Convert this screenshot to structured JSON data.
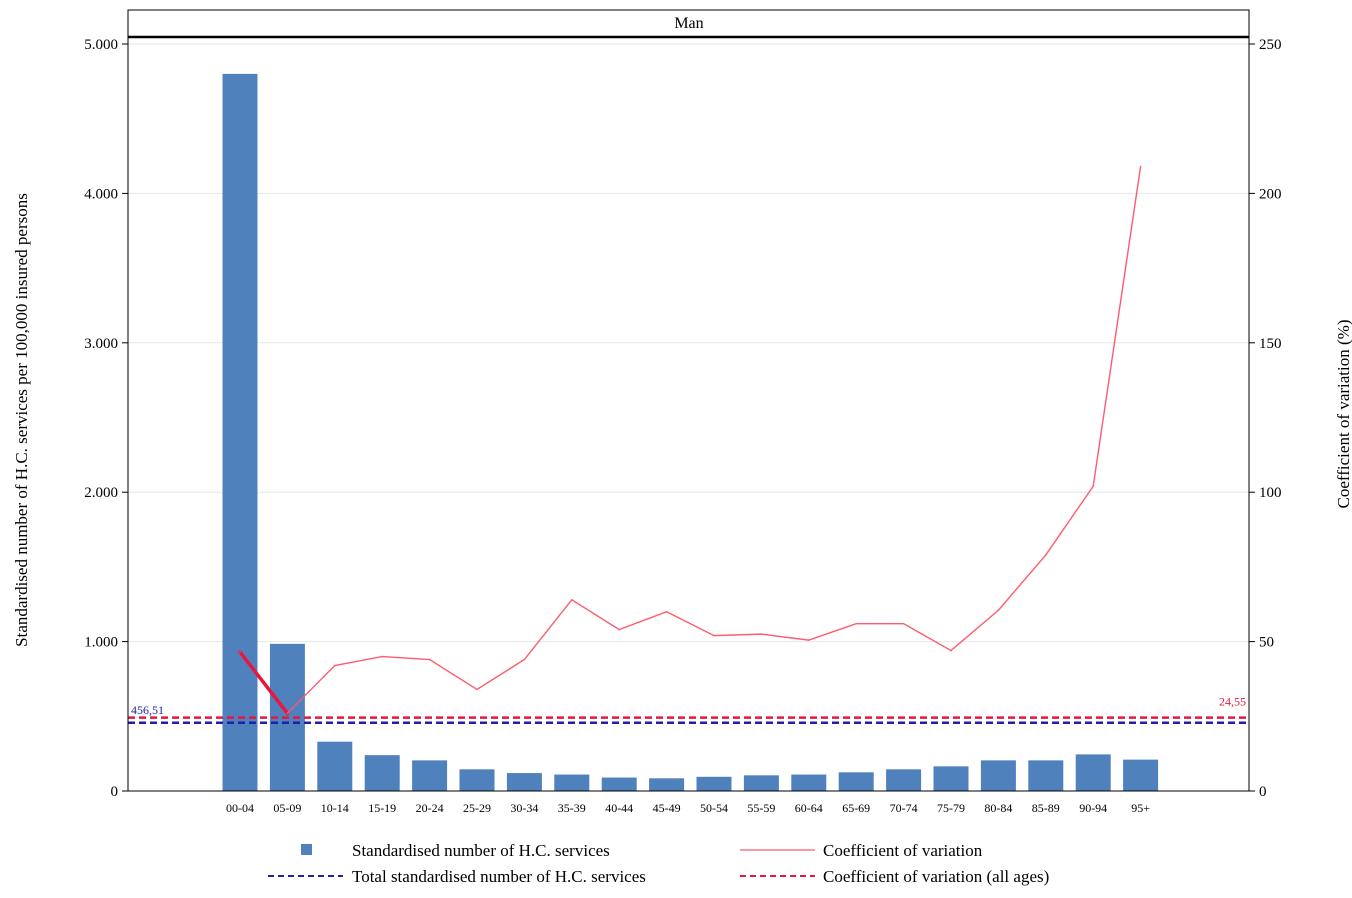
{
  "chart_data": {
    "type": "bar",
    "title": "Man",
    "categories": [
      "00-04",
      "05-09",
      "10-14",
      "15-19",
      "20-24",
      "25-29",
      "30-34",
      "35-39",
      "40-44",
      "45-49",
      "50-54",
      "55-59",
      "60-64",
      "65-69",
      "70-74",
      "75-79",
      "80-84",
      "85-89",
      "90-94",
      "95+"
    ],
    "ylabel": "Standardised number of H.C. services per 100,000 insured persons",
    "y2label": "Coefficient of variation (%)",
    "ylim": [
      0,
      5000
    ],
    "y2lim": [
      0,
      250
    ],
    "yticks": [
      0,
      1000,
      2000,
      3000,
      4000,
      5000
    ],
    "yticklabels": [
      "0",
      "1.000",
      "2.000",
      "3.000",
      "4.000",
      "5.000"
    ],
    "y2ticks": [
      0,
      50,
      100,
      150,
      200,
      250
    ],
    "y2ticklabels": [
      "0",
      "50",
      "100",
      "150",
      "200",
      "250"
    ],
    "grid": true,
    "series": [
      {
        "name": "Standardised number of H.C. services",
        "kind": "bar",
        "axis": "left",
        "color": "#4f81bd",
        "values": [
          4800,
          985,
          330,
          240,
          205,
          145,
          120,
          110,
          90,
          85,
          95,
          105,
          110,
          125,
          145,
          165,
          205,
          205,
          245,
          210
        ]
      },
      {
        "name": "Coefficient of variation",
        "kind": "line",
        "axis": "right",
        "color": "#ff5a6e",
        "values": [
          46.5,
          26,
          42,
          45,
          44,
          34,
          44,
          64,
          54,
          60,
          52,
          52.5,
          50.5,
          56,
          56,
          47,
          60.5,
          79,
          102,
          209
        ]
      }
    ],
    "reference_lines": [
      {
        "name": "Total standardised number of H.C. services",
        "axis": "left",
        "value": 456.51,
        "label": "456,51",
        "color": "#1f1fa8",
        "style": "dashed"
      },
      {
        "name": "Coefficient of variation (all ages)",
        "axis": "right",
        "value": 24.55,
        "label": "24,55",
        "color": "#e8173c",
        "style": "dashed"
      }
    ],
    "legend": {
      "placement": "bottom",
      "items": [
        "Standardised number of H.C. services",
        "Coefficient of variation",
        "Total standardised number of H.C. services",
        "Coefficient of variation (all ages)"
      ]
    }
  }
}
